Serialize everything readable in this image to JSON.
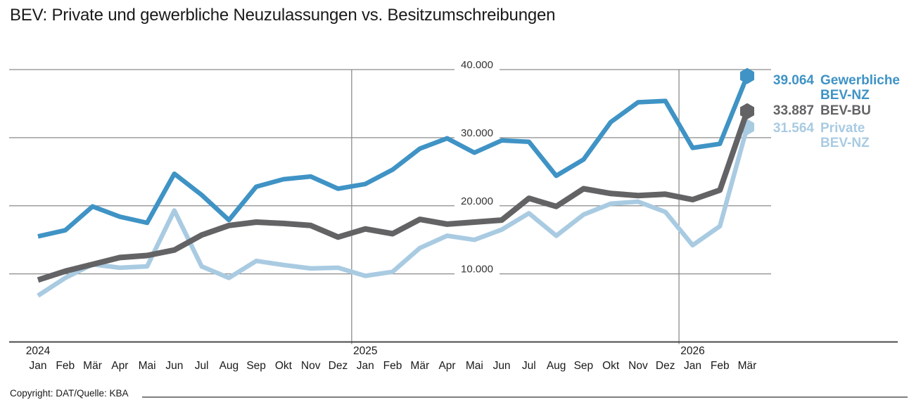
{
  "title": "BEV: Private und gewerbliche Neuzulassungen vs. Besitzumschreibungen",
  "copyright": "Copyright: DAT/Quelle: KBA",
  "chart_data": {
    "type": "line",
    "title": "BEV: Private und gewerbliche Neuzulassungen vs. Besitzumschreibungen",
    "xlabel": "",
    "ylabel": "",
    "ylim": [
      0,
      40000
    ],
    "grid": "horizontal gridlines at 10.000/20.000/30.000/40.000, vertical year separator lines",
    "legend_position": "right of last data point",
    "y_ticks": [
      {
        "label": "40.000",
        "value": 40000
      },
      {
        "label": "30.000",
        "value": 30000
      },
      {
        "label": "20.000",
        "value": 20000
      },
      {
        "label": "10.000",
        "value": 10000
      }
    ],
    "categories": [
      "Jan",
      "Feb",
      "Mär",
      "Apr",
      "Mai",
      "Jun",
      "Jul",
      "Aug",
      "Sep",
      "Okt",
      "Nov",
      "Dez",
      "Jan",
      "Feb",
      "Mär",
      "Apr",
      "Mai",
      "Jun",
      "Jul",
      "Aug",
      "Sep",
      "Okt",
      "Nov",
      "Dez",
      "Jan",
      "Feb",
      "Mär"
    ],
    "year_labels": [
      {
        "label": "2024",
        "month_index": 0
      },
      {
        "label": "2025",
        "month_index": 12
      },
      {
        "label": "2026",
        "month_index": 24
      }
    ],
    "year_separators_after_index": [
      11,
      23
    ],
    "series": [
      {
        "name": "Private BEV-NZ",
        "color": "#a9cbe2",
        "end_value_label": "31.564",
        "end_name_lines": [
          "Private",
          "BEV-NZ"
        ],
        "values": [
          6800,
          9400,
          11400,
          10900,
          11100,
          19300,
          11100,
          9400,
          11900,
          11300,
          10800,
          10900,
          9700,
          10300,
          13800,
          15600,
          15000,
          16500,
          18900,
          15600,
          18700,
          20300,
          20600,
          19100,
          14200,
          17000,
          31564
        ]
      },
      {
        "name": "BEV-BU",
        "color": "#636365",
        "end_value_label": "33.887",
        "end_name_lines": [
          "BEV-BU"
        ],
        "values": [
          9100,
          10400,
          11400,
          12400,
          12700,
          13500,
          15700,
          17100,
          17600,
          17400,
          17100,
          15400,
          16600,
          15900,
          18000,
          17300,
          17600,
          17900,
          21100,
          19900,
          22500,
          21800,
          21500,
          21700,
          20900,
          22300,
          33887
        ]
      },
      {
        "name": "Gewerbliche BEV-NZ",
        "color": "#3f93c5",
        "end_value_label": "39.064",
        "end_name_lines": [
          "Gewerbliche",
          "BEV-NZ"
        ],
        "values": [
          15500,
          16400,
          19900,
          18400,
          17500,
          24700,
          21600,
          17900,
          22800,
          23900,
          24300,
          22500,
          23200,
          25300,
          28400,
          29900,
          27800,
          29600,
          29400,
          24400,
          26800,
          32300,
          35200,
          35400,
          28500,
          29100,
          39064
        ]
      }
    ]
  }
}
